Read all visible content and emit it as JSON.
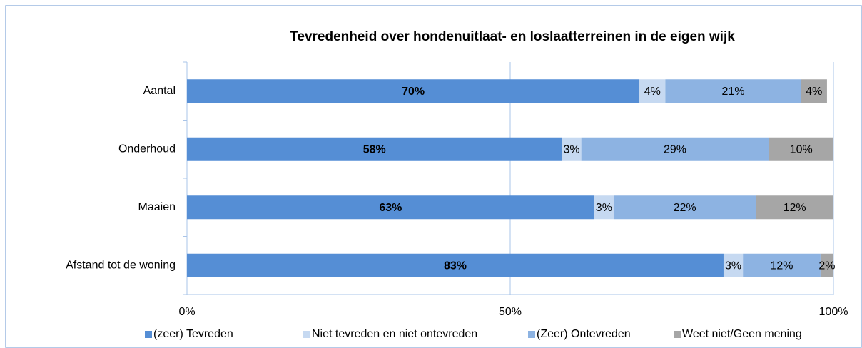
{
  "chart_data": {
    "type": "bar",
    "orientation": "horizontal",
    "stacked": true,
    "title": "Tevredenheid over hondenuitlaat- en loslaatterreinen in de eigen wijk",
    "categories": [
      "Aantal",
      "Onderhoud",
      "Maaien",
      "Afstand tot de woning"
    ],
    "series": [
      {
        "name": "(zeer) Tevreden",
        "color": "#558ed5",
        "label_color": "#ffffff",
        "values": [
          70,
          58,
          63,
          83
        ],
        "value_labels": [
          "70%",
          "58%",
          "63%",
          "83%"
        ]
      },
      {
        "name": "Niet tevreden en niet ontevreden",
        "color": "#c6d9f1",
        "label_color": "#000000",
        "values": [
          4,
          3,
          3,
          3
        ],
        "value_labels": [
          "4%",
          "3%",
          "3%",
          "3%"
        ]
      },
      {
        "name": "(Zeer) Ontevreden",
        "color": "#8db3e2",
        "label_color": "#000000",
        "values": [
          21,
          29,
          22,
          12
        ],
        "value_labels": [
          "21%",
          "29%",
          "22%",
          "12%"
        ]
      },
      {
        "name": "Weet niet/Geen mening",
        "color": "#a6a6a6",
        "label_color": "#000000",
        "values": [
          4,
          10,
          12,
          2
        ],
        "value_labels": [
          "4%",
          "10%",
          "12%",
          "2%"
        ]
      }
    ],
    "xlim": [
      0,
      100
    ],
    "xticks": [
      {
        "value": 0,
        "label": "0%"
      },
      {
        "value": 50,
        "label": "50%"
      },
      {
        "value": 100,
        "label": "100%"
      }
    ],
    "grid": true,
    "legend": "bottom"
  }
}
